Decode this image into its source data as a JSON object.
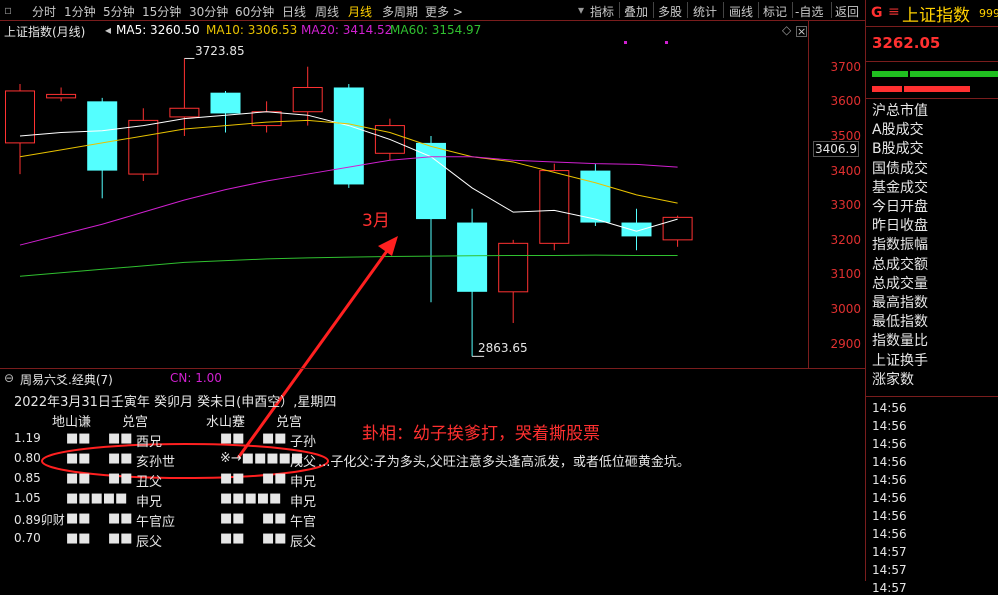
{
  "toolbar": {
    "left_tabs": [
      "分时",
      "1分钟",
      "5分钟",
      "15分钟",
      "30分钟",
      "60分钟",
      "日线",
      "周线",
      "月线",
      "多周期",
      "更多 >"
    ],
    "active_tab": "月线",
    "right_tools": [
      "指标",
      "叠加",
      "多股",
      "统计",
      "画线",
      "标记",
      "-自选",
      "返回"
    ]
  },
  "chart_header": {
    "title": "上证指数(月线)",
    "ma5": "MA5: 3260.50",
    "ma10": "MA10: 3306.53",
    "ma20": "MA20: 3414.52",
    "ma60": "MA60: 3154.97",
    "colors": {
      "ma5": "#ffffff",
      "ma10": "#e8c200",
      "ma20": "#d020d0",
      "ma60": "#30c030"
    }
  },
  "chart_data": {
    "type": "candlestick",
    "ylim": [
      2830,
      3780
    ],
    "yticks": [
      2900,
      3000,
      3100,
      3200,
      3300,
      3400,
      3500,
      3600,
      3700
    ],
    "candles": [
      {
        "o": 3480,
        "c": 3630,
        "h": 3650,
        "l": 3390
      },
      {
        "o": 3610,
        "c": 3620,
        "h": 3640,
        "l": 3600
      },
      {
        "o": 3600,
        "c": 3400,
        "h": 3610,
        "l": 3320
      },
      {
        "o": 3390,
        "c": 3545,
        "h": 3580,
        "l": 3370
      },
      {
        "o": 3555,
        "c": 3580,
        "h": 3723.85,
        "l": 3500
      },
      {
        "o": 3625,
        "c": 3565,
        "h": 3630,
        "l": 3510
      },
      {
        "o": 3530,
        "c": 3570,
        "h": 3600,
        "l": 3510
      },
      {
        "o": 3570,
        "c": 3640,
        "h": 3700,
        "l": 3530
      },
      {
        "o": 3640,
        "c": 3360,
        "h": 3650,
        "l": 3350
      },
      {
        "o": 3450,
        "c": 3530,
        "h": 3550,
        "l": 3430
      },
      {
        "o": 3480,
        "c": 3260,
        "h": 3500,
        "l": 3020
      },
      {
        "o": 3250,
        "c": 3050,
        "h": 3290,
        "l": 2863.65
      },
      {
        "o": 3050,
        "c": 3190,
        "h": 3200,
        "l": 2960
      },
      {
        "o": 3190,
        "c": 3400,
        "h": 3420,
        "l": 3170
      },
      {
        "o": 3400,
        "c": 3250,
        "h": 3420,
        "l": 3240
      },
      {
        "o": 3250,
        "c": 3210,
        "h": 3290,
        "l": 3170
      },
      {
        "o": 3200,
        "c": 3265,
        "h": 3270,
        "l": 3180
      }
    ],
    "ma_series": [
      {
        "key": "ma5",
        "values": [
          3500,
          3510,
          3515,
          3530,
          3550,
          3560,
          3570,
          3560,
          3530,
          3490,
          3440,
          3350,
          3280,
          3285,
          3260,
          3225,
          3260
        ]
      },
      {
        "key": "ma10",
        "values": [
          3440,
          3460,
          3480,
          3500,
          3520,
          3530,
          3540,
          3545,
          3535,
          3510,
          3470,
          3440,
          3425,
          3395,
          3365,
          3330,
          3306
        ]
      },
      {
        "key": "ma20",
        "values": [
          3185,
          3215,
          3245,
          3280,
          3315,
          3345,
          3370,
          3390,
          3410,
          3430,
          3440,
          3440,
          3430,
          3425,
          3420,
          3418,
          3410
        ]
      },
      {
        "key": "ma60",
        "values": [
          3095,
          3105,
          3115,
          3125,
          3135,
          3140,
          3145,
          3148,
          3150,
          3152,
          3153,
          3154,
          3155,
          3155,
          3156,
          3155,
          3155
        ]
      }
    ],
    "annotations": {
      "high": "3723.85",
      "low": "2863.65",
      "price_tag": "3406.9",
      "month": "3月"
    }
  },
  "bottom": {
    "indicator_title": "周易六爻.经典(7)",
    "cn_label": "CN: 1.00",
    "date_line": "2022年3月31日壬寅年 癸卯月 癸未日(申酉空）,星期四",
    "gua_left": "地山谦",
    "gua_palace_left": "兑宫",
    "gua_right": "水山蹇",
    "gua_palace_right": "兑宫",
    "note": "卦相：幼子挨爹打，哭着撕股票",
    "rows": [
      {
        "val": "1.19",
        "lb": "■■",
        "lb2": "■■",
        "lt": "酉兄",
        "rb": "■■",
        "rb2": "■■",
        "rt": "子孙",
        "extra": ""
      },
      {
        "val": "0.80",
        "lb": "■■",
        "lb2": "■■",
        "lt": "亥孙世",
        "rb": "※→■■■■■",
        "rb2": "",
        "rt": "戌父",
        "extra": "...子化父:子为多头,父旺注意多头逢高派发，或者低位砸黄金坑。"
      },
      {
        "val": "0.85",
        "lb": "■■",
        "lb2": "■■",
        "lt": "丑父",
        "rb": "■■",
        "rb2": "■■",
        "rt": "申兄",
        "extra": ""
      },
      {
        "val": "1.05",
        "lb": "■■■■■",
        "lb2": "",
        "lt": "申兄",
        "rb": "■■■■■",
        "rb2": "",
        "rt": "申兄",
        "extra": ""
      },
      {
        "val": "0.89卯财",
        "lb": "■■",
        "lb2": "■■",
        "lt": "午官应",
        "rb": "■■",
        "rb2": "■■",
        "rt": "午官",
        "extra": ""
      },
      {
        "val": "0.70",
        "lb": "■■",
        "lb2": "■■",
        "lt": "辰父",
        "rb": "■■",
        "rb2": "■■",
        "rt": "辰父",
        "extra": ""
      }
    ]
  },
  "right": {
    "logo": "G",
    "equals": "≡",
    "title": "上证指数",
    "code": "999",
    "price": "3262.05",
    "items": [
      "沪总市值",
      "A股成交",
      "B股成交",
      "国债成交",
      "基金成交",
      "今日开盘",
      "昨日收盘",
      "指数振幅",
      "总成交额",
      "总成交量",
      "最高指数",
      "最低指数",
      "指数量比",
      "上证换手",
      "涨家数"
    ],
    "times": [
      "14:56",
      "14:56",
      "14:56",
      "14:56",
      "14:56",
      "14:56",
      "14:56",
      "14:56",
      "14:57",
      "14:57",
      "14:57"
    ]
  }
}
